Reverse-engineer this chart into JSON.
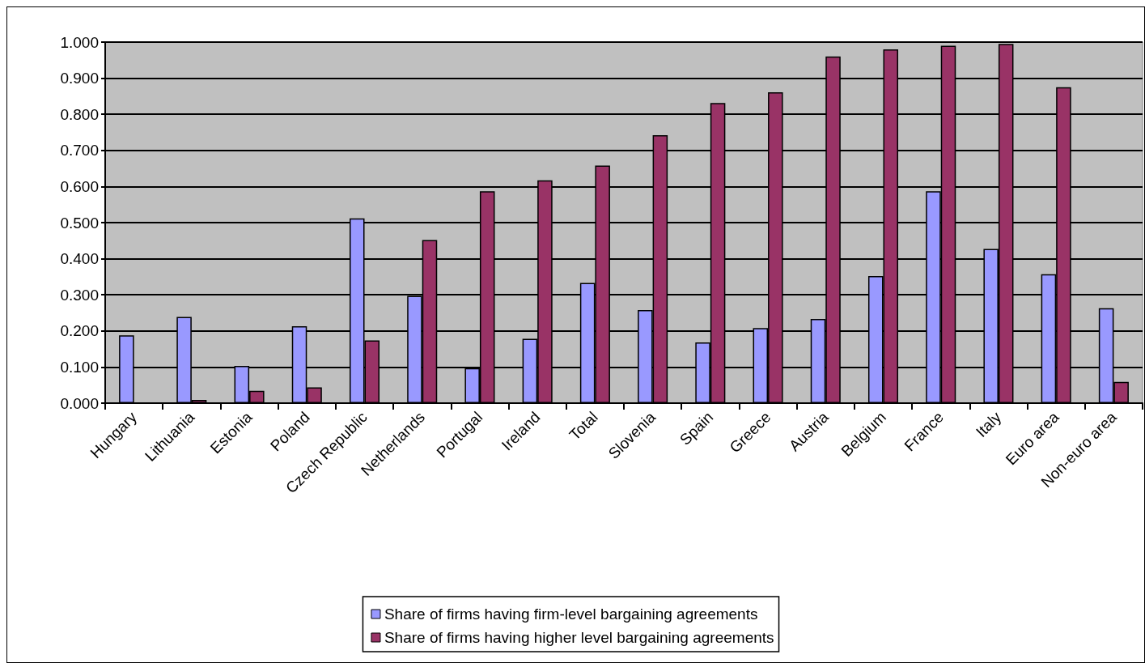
{
  "chart_data": {
    "type": "bar",
    "categories": [
      "Hungary",
      "Lithuania",
      "Estonia",
      "Poland",
      "Czech Republic",
      "Netherlands",
      "Portugal",
      "Ireland",
      "Total",
      "Slovenia",
      "Spain",
      "Greece",
      "Austria",
      "Belgium",
      "France",
      "Italy",
      "Euro area",
      "Non-euro area"
    ],
    "series": [
      {
        "name": "Share of firms having firm-level bargaining agreements",
        "color": "#9999ff",
        "values": [
          0.188,
          0.239,
          0.103,
          0.213,
          0.512,
          0.297,
          0.097,
          0.178,
          0.333,
          0.258,
          0.168,
          0.208,
          0.233,
          0.352,
          0.587,
          0.427,
          0.357,
          0.263
        ]
      },
      {
        "name": "Share of firms having higher level bargaining agreements",
        "color": "#993366",
        "values": [
          null,
          0.009,
          0.034,
          0.044,
          0.174,
          0.452,
          0.587,
          0.617,
          0.658,
          0.742,
          0.831,
          0.861,
          0.96,
          0.98,
          0.99,
          0.995,
          0.875,
          0.059
        ]
      }
    ],
    "ylim": [
      0,
      1
    ],
    "yticks": [
      {
        "value": 0,
        "label": "0.000"
      },
      {
        "value": 0.1,
        "label": "0.100"
      },
      {
        "value": 0.2,
        "label": "0.200"
      },
      {
        "value": 0.3,
        "label": "0.300"
      },
      {
        "value": 0.4,
        "label": "0.400"
      },
      {
        "value": 0.5,
        "label": "0.500"
      },
      {
        "value": 0.6,
        "label": "0.600"
      },
      {
        "value": 0.7,
        "label": "0.700"
      },
      {
        "value": 0.8,
        "label": "0.800"
      },
      {
        "value": 0.9,
        "label": "0.900"
      },
      {
        "value": 1,
        "label": "1.000"
      }
    ],
    "grid": "y",
    "legend": "bottom"
  }
}
